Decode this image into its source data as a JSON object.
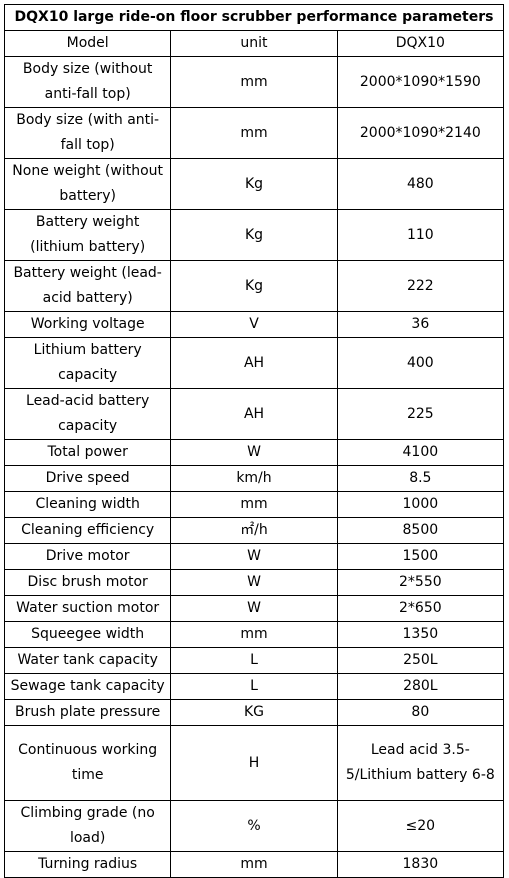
{
  "title": "DQX10 large ride-on floor scrubber performance parameters",
  "header": {
    "model": "Model",
    "unit": "unit",
    "value": "DQX10"
  },
  "rows": [
    {
      "param": "Body size (without anti-fall top)",
      "unit": "mm",
      "value": "2000*1090*1590"
    },
    {
      "param": "Body size (with anti-fall top)",
      "unit": "mm",
      "value": "2000*1090*2140"
    },
    {
      "param": "None weight (without battery)",
      "unit": "Kg",
      "value": "480"
    },
    {
      "param": "Battery weight (lithium battery)",
      "unit": "Kg",
      "value": "110"
    },
    {
      "param": "Battery weight (lead-acid battery)",
      "unit": "Kg",
      "value": "222"
    },
    {
      "param": "Working voltage",
      "unit": "V",
      "value": "36"
    },
    {
      "param": "Lithium battery capacity",
      "unit": "AH",
      "value": "400"
    },
    {
      "param": "Lead-acid battery capacity",
      "unit": "AH",
      "value": "225"
    },
    {
      "param": "Total power",
      "unit": "W",
      "value": "4100"
    },
    {
      "param": "Drive speed",
      "unit": "km/h",
      "value": "8.5"
    },
    {
      "param": "Cleaning width",
      "unit": "mm",
      "value": "1000"
    },
    {
      "param": "Cleaning efficiency",
      "unit": "㎡/h",
      "value": "8500"
    },
    {
      "param": "Drive motor",
      "unit": "W",
      "value": "1500"
    },
    {
      "param": "Disc brush motor",
      "unit": "W",
      "value": "2*550"
    },
    {
      "param": "Water suction motor",
      "unit": "W",
      "value": "2*650"
    },
    {
      "param": "Squeegee width",
      "unit": "mm",
      "value": "1350"
    },
    {
      "param": "Water tank capacity",
      "unit": "L",
      "value": "250L"
    },
    {
      "param": "Sewage tank capacity",
      "unit": "L",
      "value": "280L"
    },
    {
      "param": "Brush plate pressure",
      "unit": "KG",
      "value": "80"
    },
    {
      "param": "Continuous working time",
      "unit": "H",
      "value": "Lead acid 3.5-5/Lithium battery 6-8"
    },
    {
      "param": "Climbing grade (no load)",
      "unit": "%",
      "value": "≤20"
    },
    {
      "param": "Turning radius",
      "unit": "mm",
      "value": "1830"
    }
  ]
}
